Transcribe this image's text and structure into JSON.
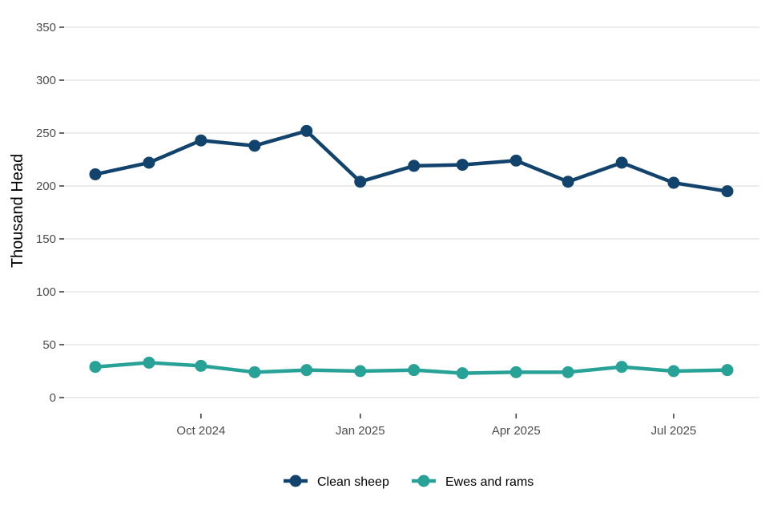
{
  "chart_data": {
    "type": "line",
    "title": "",
    "xlabel": "",
    "ylabel": "Thousand Head",
    "x": [
      "2024-08-01",
      "2024-09-01",
      "2024-10-01",
      "2024-11-01",
      "2024-12-01",
      "2025-01-01",
      "2025-02-01",
      "2025-03-01",
      "2025-04-01",
      "2025-05-01",
      "2025-06-01",
      "2025-07-01",
      "2025-08-01"
    ],
    "x_ticks": [
      {
        "date": "2024-10-01",
        "label": "Oct 2024"
      },
      {
        "date": "2025-01-01",
        "label": "Jan 2025"
      },
      {
        "date": "2025-04-01",
        "label": "Apr 2025"
      },
      {
        "date": "2025-07-01",
        "label": "Jul 2025"
      }
    ],
    "xlim": [
      "2024-08-01",
      "2025-08-01"
    ],
    "ylim": [
      0,
      350
    ],
    "y_ticks": [
      0,
      50,
      100,
      150,
      200,
      250,
      300,
      350
    ],
    "grid": "horizontal",
    "legend_position": "bottom",
    "series": [
      {
        "name": "Clean sheep",
        "color": "#12436d",
        "values": [
          211,
          222,
          243,
          238,
          252,
          204,
          219,
          220,
          224,
          204,
          222,
          203,
          195
        ]
      },
      {
        "name": "Ewes and rams",
        "color": "#28a197",
        "values": [
          29,
          33,
          30,
          24,
          26,
          25,
          26,
          23,
          24,
          24,
          29,
          25,
          26
        ]
      }
    ]
  }
}
